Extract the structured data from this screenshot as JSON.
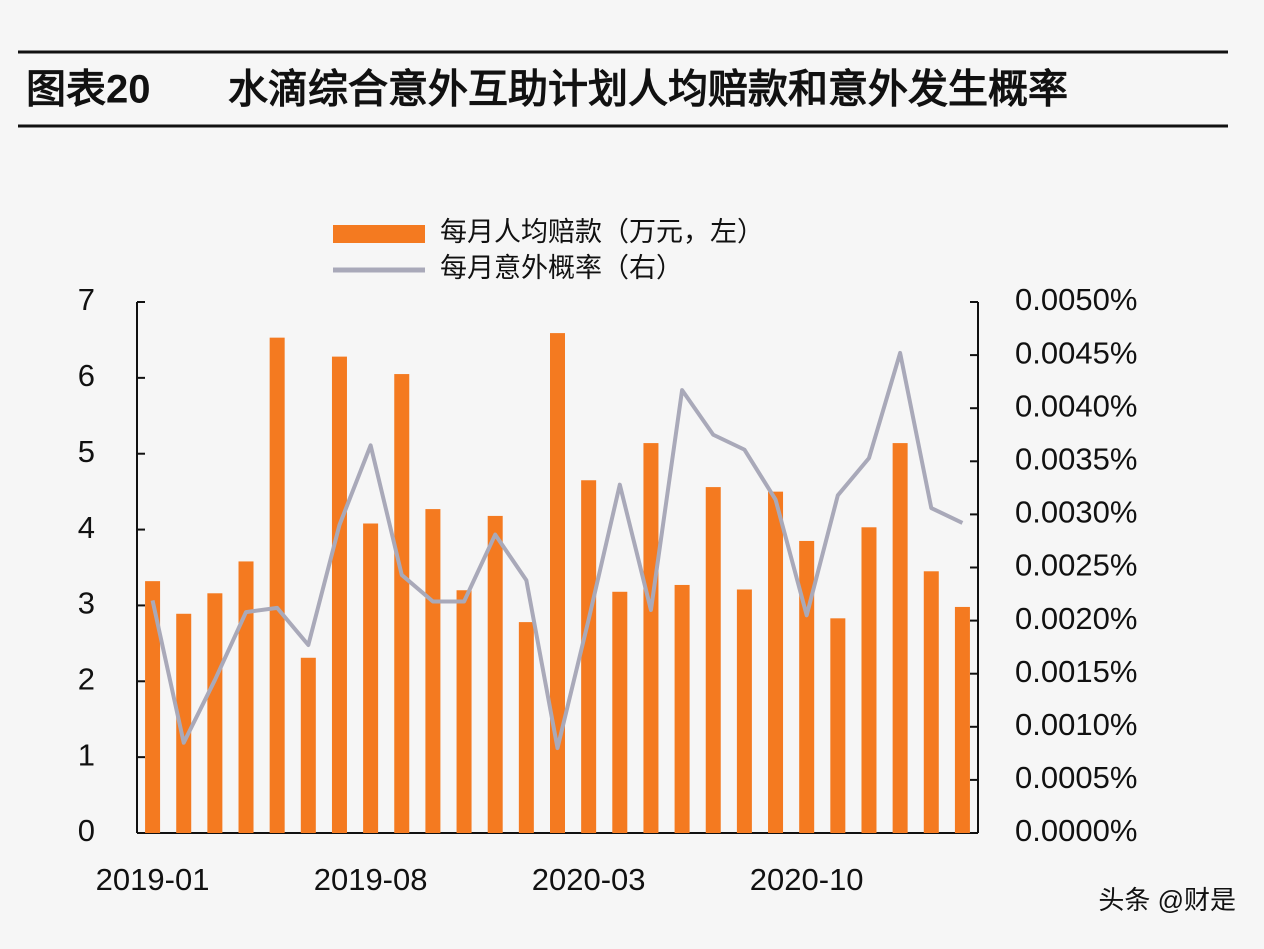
{
  "chart_data": {
    "type": "bar",
    "figure_label": "图表20",
    "title": "水滴综合意外互助计划人均赔款和意外发生概率",
    "watermark": "头条 @财是",
    "categories": [
      "2019-01",
      null,
      null,
      null,
      null,
      null,
      null,
      "2019-08",
      null,
      null,
      null,
      null,
      null,
      null,
      "2020-03",
      null,
      null,
      null,
      null,
      null,
      null,
      "2020-10",
      null,
      null,
      null,
      null,
      null
    ],
    "series": [
      {
        "name": "每月人均赔款（万元，左）",
        "type": "bar",
        "color": "#f47a20",
        "values": [
          3.32,
          2.89,
          3.16,
          3.58,
          6.53,
          2.31,
          6.28,
          4.08,
          6.05,
          4.27,
          3.2,
          4.18,
          2.78,
          6.59,
          4.65,
          3.18,
          5.14,
          3.27,
          4.56,
          3.21,
          4.5,
          3.85,
          2.83,
          4.03,
          5.14,
          3.45,
          2.98
        ]
      },
      {
        "name": "每月意外概率（右）",
        "type": "line",
        "axis": "y2",
        "color": "#a9a9b9",
        "values": [
          0.00219,
          0.00085,
          0.00144,
          0.00208,
          0.00212,
          0.00177,
          0.0029,
          0.00365,
          0.00243,
          0.00218,
          0.00218,
          0.00281,
          0.00238,
          0.0008,
          0.00201,
          0.00328,
          0.0021,
          0.00417,
          0.00375,
          0.00361,
          0.00314,
          0.00205,
          0.00318,
          0.00353,
          0.00452,
          0.00306,
          0.00292
        ]
      }
    ],
    "ylim": [
      0,
      7
    ],
    "yticks": [
      0,
      1,
      2,
      3,
      4,
      5,
      6,
      7
    ],
    "y2lim": [
      0,
      0.005
    ],
    "y2ticks": [
      {
        "value": 0,
        "label": "0.0000%"
      },
      {
        "value": 0.0005,
        "label": "0.0005%"
      },
      {
        "value": 0.001,
        "label": "0.0010%"
      },
      {
        "value": 0.0015,
        "label": "0.0015%"
      },
      {
        "value": 0.002,
        "label": "0.0020%"
      },
      {
        "value": 0.0025,
        "label": "0.0025%"
      },
      {
        "value": 0.003,
        "label": "0.0030%"
      },
      {
        "value": 0.0035,
        "label": "0.0035%"
      },
      {
        "value": 0.004,
        "label": "0.0040%"
      },
      {
        "value": 0.0045,
        "label": "0.0045%"
      },
      {
        "value": 0.005,
        "label": "0.0050%"
      }
    ],
    "legend": "top"
  }
}
